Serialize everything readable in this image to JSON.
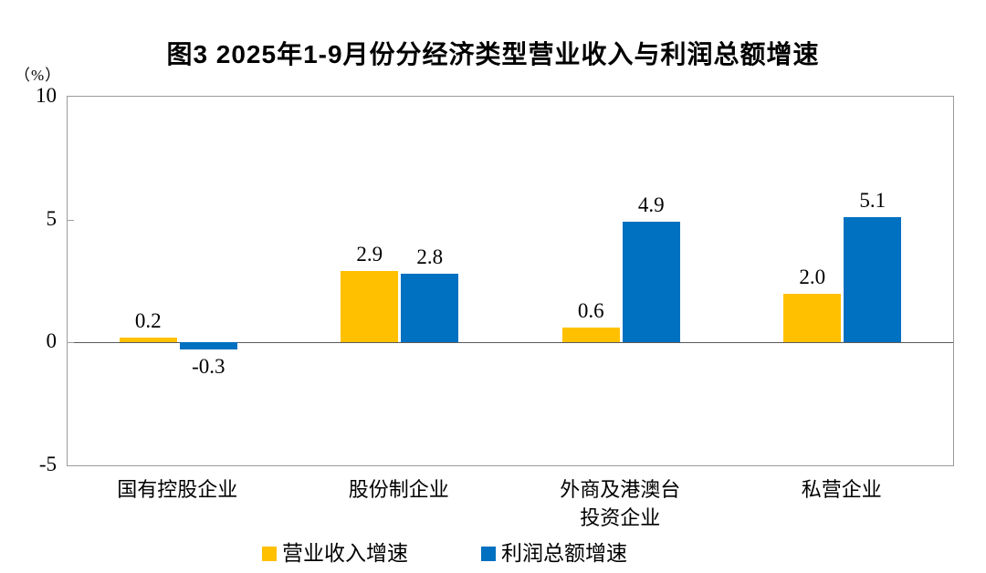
{
  "header": {
    "title": "图3  2025年1-9月份分经济类型营业收入与利润总额增速",
    "unit_label": "（%）"
  },
  "chart_data": {
    "type": "bar",
    "categories": [
      "国有控股企业",
      "股份制企业",
      "外商及港澳台\n投资企业",
      "私营企业"
    ],
    "series": [
      {
        "name": "营业收入增速",
        "color": "#FFC000",
        "values": [
          0.2,
          2.9,
          0.6,
          2.0
        ]
      },
      {
        "name": "利润总额增速",
        "color": "#0070C0",
        "values": [
          -0.3,
          2.8,
          4.9,
          5.1
        ]
      }
    ],
    "title": "图3  2025年1-9月份分经济类型营业收入与利润总额增速",
    "xlabel": "",
    "ylabel": "（%）",
    "ylim": [
      -5,
      10
    ],
    "yticks": [
      10,
      5,
      0,
      -5
    ],
    "grid": false,
    "legend_position": "bottom",
    "value_label_decimals": 1,
    "colors": {
      "plot_border": "#9b9b9b",
      "zero_line": "#595959",
      "text": "#000000"
    }
  }
}
